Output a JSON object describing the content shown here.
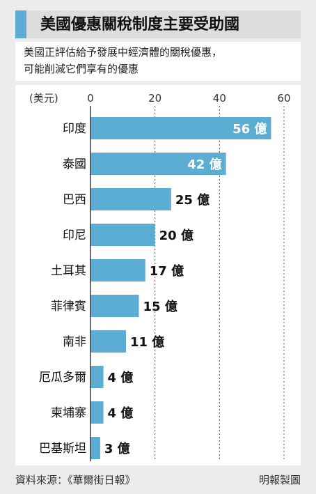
{
  "title": "美國優惠關稅制度主要受助國",
  "subtitle": [
    "美國正評估給予發展中經濟體的關稅優惠，",
    "可能削減它們享有的優惠"
  ],
  "source": "資料來源：《華爾街日報》",
  "credit": "明報製圖",
  "colors": {
    "bar": "#5badd3",
    "accent": "#5badd3",
    "grid": "#555555"
  },
  "chart_data": {
    "type": "bar",
    "orientation": "horizontal",
    "unit_label": "(美元)",
    "value_suffix": "億",
    "categories": [
      "印度",
      "泰國",
      "巴西",
      "印尼",
      "土耳其",
      "菲律賓",
      "南非",
      "厄瓜多爾",
      "柬埔寨",
      "巴基斯坦"
    ],
    "values": [
      56,
      42,
      25,
      20,
      17,
      15,
      11,
      4,
      4,
      3
    ],
    "data_labels": [
      "56 億",
      "42 億",
      "25 億",
      "20 億",
      "17 億",
      "15 億",
      "11 億",
      "4 億",
      "4 億",
      "3 億"
    ],
    "xticks": [
      "0",
      "20",
      "40",
      "60"
    ],
    "xlim": [
      0,
      60
    ],
    "grid": "vertical dotted",
    "legend": "none"
  }
}
